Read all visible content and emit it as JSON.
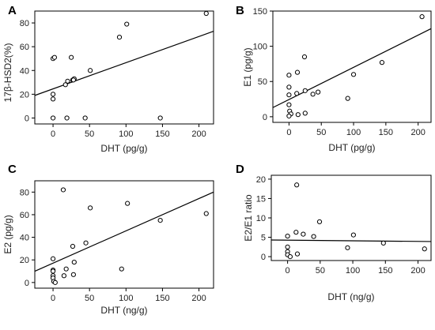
{
  "chart_data": [
    {
      "type": "scatter",
      "panel_label": "A",
      "xlabel": "DHT (pg/g)",
      "ylabel": "17β-HSD2(%)",
      "xlim": [
        -25,
        220
      ],
      "ylim": [
        -5,
        90
      ],
      "xticks": [
        0,
        50,
        100,
        150,
        200
      ],
      "yticks": [
        0,
        20,
        40,
        60,
        80
      ],
      "points": [
        [
          0,
          50
        ],
        [
          2,
          51
        ],
        [
          25,
          51
        ],
        [
          0,
          20
        ],
        [
          0,
          16
        ],
        [
          0,
          0
        ],
        [
          17,
          28
        ],
        [
          20,
          31
        ],
        [
          27,
          32
        ],
        [
          29,
          33
        ],
        [
          28,
          32
        ],
        [
          51,
          40
        ],
        [
          91,
          68
        ],
        [
          101,
          79
        ],
        [
          210,
          88
        ],
        [
          19,
          0
        ],
        [
          44,
          0
        ],
        [
          147,
          0
        ]
      ],
      "fit_line": [
        [
          -25,
          19
        ],
        [
          220,
          73
        ]
      ]
    },
    {
      "type": "scatter",
      "panel_label": "B",
      "xlabel": "DHT (pg/g)",
      "ylabel": "E1 (pg/g)",
      "xlim": [
        -25,
        220
      ],
      "ylim": [
        -8,
        150
      ],
      "xticks": [
        0,
        50,
        100,
        150,
        200
      ],
      "yticks": [
        0,
        50,
        100,
        150
      ],
      "points": [
        [
          206,
          142
        ],
        [
          24,
          85
        ],
        [
          0,
          59
        ],
        [
          13,
          63
        ],
        [
          0,
          42
        ],
        [
          0,
          31
        ],
        [
          0,
          17
        ],
        [
          1,
          8
        ],
        [
          3,
          4
        ],
        [
          0,
          1
        ],
        [
          12,
          33
        ],
        [
          25,
          37
        ],
        [
          37,
          32
        ],
        [
          45,
          35
        ],
        [
          100,
          60
        ],
        [
          144,
          77
        ],
        [
          91,
          26
        ],
        [
          14,
          3
        ],
        [
          25,
          5
        ]
      ],
      "fit_line": [
        [
          -25,
          13
        ],
        [
          220,
          125
        ]
      ]
    },
    {
      "type": "scatter",
      "panel_label": "C",
      "xlabel": "DHT (ng/g)",
      "ylabel": "E2 (pg/g)",
      "xlim": [
        -25,
        220
      ],
      "ylim": [
        -5,
        90
      ],
      "xticks": [
        0,
        50,
        100,
        150,
        200
      ],
      "yticks": [
        0,
        20,
        40,
        60,
        80
      ],
      "points": [
        [
          14,
          82
        ],
        [
          51,
          66
        ],
        [
          102,
          70
        ],
        [
          210,
          61
        ],
        [
          147,
          55
        ],
        [
          27,
          32
        ],
        [
          45,
          35
        ],
        [
          0,
          21
        ],
        [
          29,
          18
        ],
        [
          18,
          12
        ],
        [
          94,
          12
        ],
        [
          0,
          11
        ],
        [
          0,
          10
        ],
        [
          0,
          6
        ],
        [
          0,
          4
        ],
        [
          1,
          1
        ],
        [
          3,
          0
        ],
        [
          15,
          6
        ],
        [
          28,
          7
        ]
      ],
      "fit_line": [
        [
          -25,
          10
        ],
        [
          220,
          80
        ]
      ]
    },
    {
      "type": "scatter",
      "panel_label": "D",
      "xlabel": "DHT (ng/g)",
      "ylabel": "E2/E1 ratio",
      "xlim": [
        -25,
        220
      ],
      "ylim": [
        -1,
        21
      ],
      "xticks": [
        0,
        50,
        100,
        150,
        200
      ],
      "yticks": [
        0,
        5,
        10,
        15,
        20
      ],
      "points": [
        [
          14,
          18.5
        ],
        [
          49,
          9
        ],
        [
          13,
          6.3
        ],
        [
          24,
          5.8
        ],
        [
          101,
          5.6
        ],
        [
          0,
          5.3
        ],
        [
          40,
          5.2
        ],
        [
          147,
          3.5
        ],
        [
          0,
          2.5
        ],
        [
          92,
          2.3
        ],
        [
          210,
          2
        ],
        [
          0,
          1.3
        ],
        [
          15,
          0.7
        ],
        [
          0,
          0.5
        ],
        [
          4,
          0
        ]
      ],
      "fit_line": [
        [
          -25,
          4.3
        ],
        [
          220,
          3.9
        ]
      ]
    }
  ]
}
